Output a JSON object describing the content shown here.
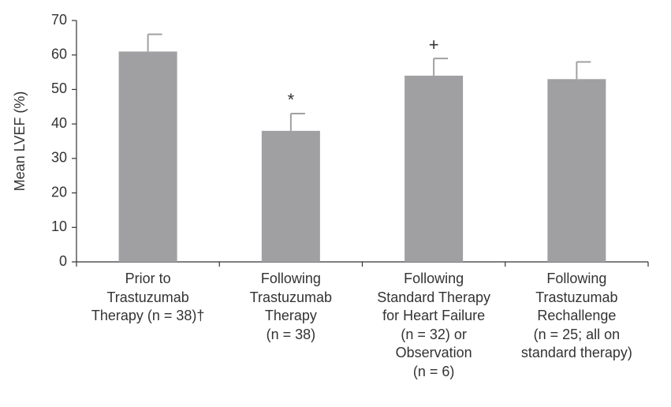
{
  "chart_data": {
    "type": "bar",
    "y_label": "Mean LVEF (%)",
    "categories": [
      "Prior to\nTrastuzumab\nTherapy (n = 38)†",
      "Following\nTrastuzumab\nTherapy\n(n = 38)",
      "Following\nStandard Therapy\nfor Heart Failure\n(n = 32) or\nObservation\n(n = 6)",
      "Following\nTrastuzumab\nRechallenge\n(n = 25; all on\nstandard therapy)"
    ],
    "values": [
      61,
      38,
      54,
      53
    ],
    "errors": [
      5,
      5,
      5,
      5
    ],
    "annotations": [
      null,
      "*",
      "+",
      null
    ],
    "color": "#a0a0a2",
    "ylim": [
      0,
      70
    ],
    "yticks": [
      0,
      10,
      20,
      30,
      40,
      50,
      60,
      70
    ],
    "grid": false
  }
}
